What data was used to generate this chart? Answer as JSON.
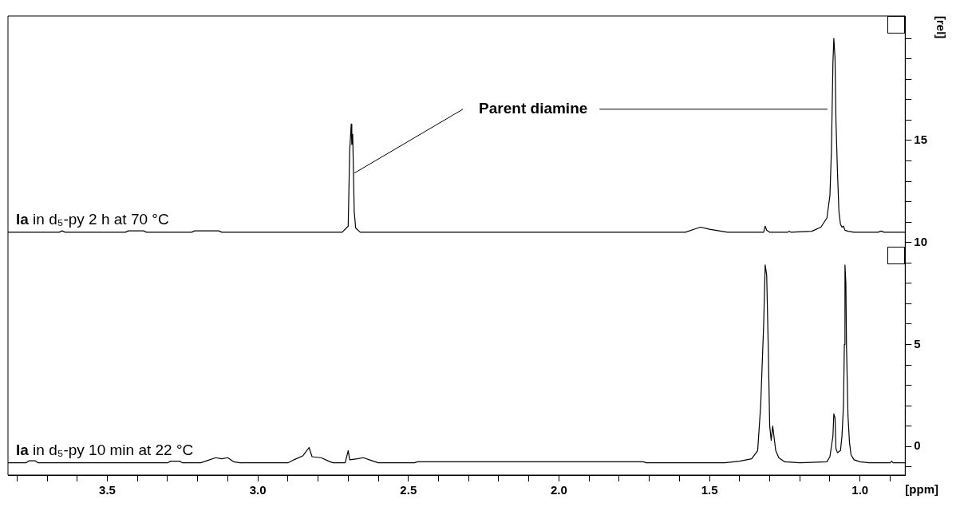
{
  "chart_data": {
    "type": "line",
    "xlabel": "[ppm]",
    "ylabel": "[rel]",
    "xlim": [
      3.83,
      0.85
    ],
    "ylim": [
      -1.4,
      21.1
    ],
    "xticks": [
      {
        "value": 3.8,
        "label": null
      },
      {
        "value": 3.7,
        "label": null
      },
      {
        "value": 3.6,
        "label": null
      },
      3.5,
      {
        "value": 3.4,
        "label": null
      },
      {
        "value": 3.3,
        "label": null
      },
      {
        "value": 3.2,
        "label": null
      },
      {
        "value": 3.1,
        "label": null
      },
      {
        "value": 3.0,
        "label": "3.0"
      },
      {
        "value": 2.9,
        "label": null
      },
      {
        "value": 2.8,
        "label": null
      },
      {
        "value": 2.7,
        "label": null
      },
      {
        "value": 2.6,
        "label": null
      },
      2.5,
      {
        "value": 2.4,
        "label": null
      },
      {
        "value": 2.3,
        "label": null
      },
      {
        "value": 2.2,
        "label": null
      },
      {
        "value": 2.1,
        "label": null
      },
      {
        "value": 2.0,
        "label": "2.0"
      },
      {
        "value": 1.9,
        "label": null
      },
      {
        "value": 1.8,
        "label": null
      },
      {
        "value": 1.7,
        "label": null
      },
      {
        "value": 1.6,
        "label": null
      },
      1.5,
      {
        "value": 1.4,
        "label": null
      },
      {
        "value": 1.3,
        "label": null
      },
      {
        "value": 1.2,
        "label": null
      },
      {
        "value": 1.1,
        "label": null
      },
      {
        "value": 1.0,
        "label": "1.0"
      },
      {
        "value": 0.9,
        "label": null
      }
    ],
    "yticks": [
      {
        "value": -1,
        "label": null
      },
      0,
      {
        "value": 1,
        "label": null
      },
      {
        "value": 2,
        "label": null
      },
      {
        "value": 3,
        "label": null
      },
      {
        "value": 4,
        "label": null
      },
      5,
      {
        "value": 6,
        "label": null
      },
      {
        "value": 7,
        "label": null
      },
      {
        "value": 8,
        "label": null
      },
      {
        "value": 9,
        "label": null
      },
      10,
      {
        "value": 11,
        "label": null
      },
      {
        "value": 12,
        "label": null
      },
      {
        "value": 13,
        "label": null
      },
      {
        "value": 14,
        "label": null
      },
      15,
      {
        "value": 16,
        "label": null
      },
      {
        "value": 17,
        "label": null
      },
      {
        "value": 18,
        "label": null
      },
      {
        "value": 19,
        "label": null
      },
      {
        "value": 20,
        "label": null
      }
    ],
    "grid": false,
    "legend": false,
    "marker": "none",
    "line_style": "solid",
    "annotations": [
      {
        "text": "Parent diamine",
        "x": 2.69,
        "y": 13.4
      }
    ],
    "series": [
      {
        "name": "Ia in d₅-py 2 h at 70 °C",
        "color": "#000000",
        "x": [
          3.83,
          3.66,
          3.65,
          3.64,
          3.44,
          3.43,
          3.38,
          3.37,
          3.22,
          3.21,
          3.13,
          3.12,
          2.72,
          2.7,
          2.695,
          2.69,
          2.688,
          2.685,
          2.68,
          2.675,
          2.66,
          1.58,
          1.55,
          1.53,
          1.5,
          1.46,
          1.44,
          1.32,
          1.315,
          1.31,
          1.3,
          1.24,
          1.235,
          1.23,
          1.16,
          1.13,
          1.11,
          1.1,
          1.095,
          1.09,
          1.087,
          1.083,
          1.08,
          1.075,
          1.07,
          1.065,
          1.06,
          1.055,
          1.05,
          1.04,
          1.02,
          0.94,
          0.93,
          0.92,
          0.85
        ],
        "values": [
          10.5,
          10.5,
          10.57,
          10.5,
          10.5,
          10.57,
          10.57,
          10.5,
          10.5,
          10.57,
          10.57,
          10.5,
          10.5,
          10.8,
          14.5,
          15.8,
          14.8,
          15.3,
          11.5,
          10.7,
          10.5,
          10.5,
          10.65,
          10.75,
          10.65,
          10.55,
          10.5,
          10.5,
          10.8,
          10.6,
          10.5,
          10.5,
          10.56,
          10.5,
          10.55,
          10.75,
          11.2,
          12.3,
          14.5,
          18.8,
          20.0,
          19.0,
          16.0,
          13.5,
          11.5,
          10.9,
          10.75,
          10.8,
          10.6,
          10.55,
          10.5,
          10.5,
          10.56,
          10.5,
          10.5
        ]
      },
      {
        "name": "Ia in d₅-py 10 min at 22 °C",
        "color": "#000000",
        "x": [
          3.83,
          3.77,
          3.76,
          3.74,
          3.73,
          3.3,
          3.29,
          3.26,
          3.25,
          3.19,
          3.17,
          3.14,
          3.12,
          3.1,
          3.08,
          3.06,
          2.9,
          2.88,
          2.85,
          2.83,
          2.82,
          2.79,
          2.76,
          2.75,
          2.71,
          2.7,
          2.695,
          2.67,
          2.65,
          2.62,
          2.6,
          2.48,
          2.47,
          1.72,
          1.71,
          1.45,
          1.4,
          1.36,
          1.34,
          1.33,
          1.32,
          1.315,
          1.31,
          1.305,
          1.3,
          1.295,
          1.29,
          1.285,
          1.28,
          1.27,
          1.25,
          1.2,
          1.11,
          1.1,
          1.09,
          1.087,
          1.083,
          1.08,
          1.075,
          1.065,
          1.06,
          1.055,
          1.052,
          1.05,
          1.047,
          1.045,
          1.04,
          1.035,
          1.03,
          1.02,
          1.0,
          0.97,
          0.9,
          0.895,
          0.89,
          0.85
        ],
        "values": [
          -0.8,
          -0.8,
          -0.7,
          -0.7,
          -0.8,
          -0.8,
          -0.72,
          -0.72,
          -0.8,
          -0.8,
          -0.7,
          -0.55,
          -0.6,
          -0.55,
          -0.75,
          -0.8,
          -0.8,
          -0.65,
          -0.45,
          -0.05,
          -0.5,
          -0.55,
          -0.75,
          -0.8,
          -0.8,
          -0.2,
          -0.65,
          -0.6,
          -0.55,
          -0.7,
          -0.8,
          -0.8,
          -0.75,
          -0.75,
          -0.8,
          -0.8,
          -0.72,
          -0.6,
          -0.2,
          2.0,
          6.0,
          8.9,
          8.4,
          5.0,
          1.0,
          0.3,
          1.0,
          0.4,
          -0.2,
          -0.55,
          -0.75,
          -0.8,
          -0.75,
          -0.5,
          0.5,
          1.6,
          1.4,
          -0.1,
          -0.3,
          -0.2,
          0.5,
          2.0,
          5.0,
          8.9,
          8.0,
          5.0,
          1.5,
          0.2,
          -0.4,
          -0.65,
          -0.75,
          -0.8,
          -0.8,
          -0.72,
          -0.8,
          -0.8
        ]
      }
    ]
  }
}
